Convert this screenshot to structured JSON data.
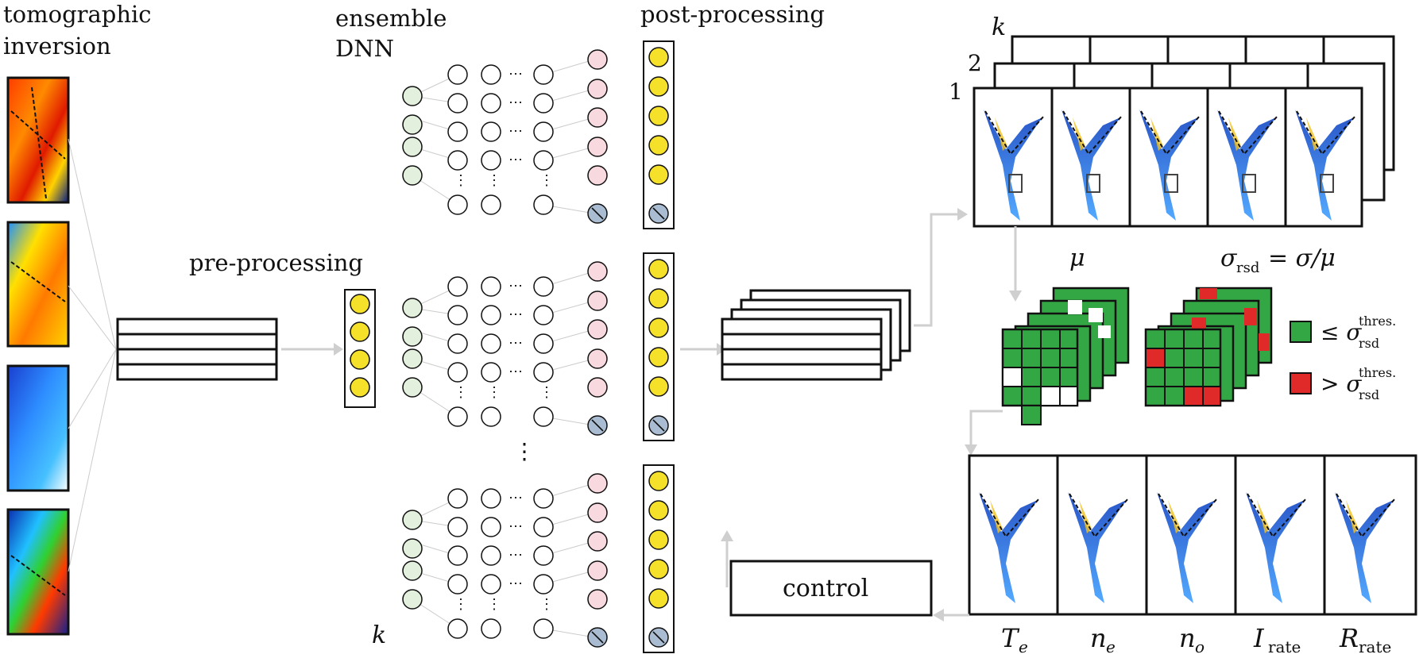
{
  "labels": {
    "tomographic": "tomographic",
    "inversion": "inversion",
    "ensemble": "ensemble",
    "dnn": "DNN",
    "preprocessing": "pre-processing",
    "postprocessing": "post-processing",
    "control": "control",
    "k_bottom": "k",
    "stack_k": "k",
    "stack_2": "2",
    "stack_1": "1",
    "mu": "μ",
    "sigma_eq": "σ",
    "sigma_sub": "rsd",
    "sigma_rhs": "= σ/μ",
    "legend_le": "≤ σ",
    "legend_gt": "> σ",
    "legend_sup": "thres.",
    "legend_sub": "rsd",
    "dots_v": "⋮",
    "dots_h": "⋯"
  },
  "outputs": [
    {
      "main": "T",
      "sub": "e"
    },
    {
      "main": "n",
      "sub": "e"
    },
    {
      "main": "n",
      "sub": "o"
    },
    {
      "main": "I",
      "sub": "rate"
    },
    {
      "main": "R",
      "sub": "rate"
    }
  ],
  "colors": {
    "input_node": "#e3f0dd",
    "output_node": "#f9d9e0",
    "output_null": "#a9bcd2",
    "yellow": "#f5e12a",
    "green": "#34a745",
    "red": "#e02a2a",
    "arrow": "#cfcfcf"
  },
  "icons": [
    "jet-colormap-image",
    "tokamak-x-point-map",
    "null-node-icon"
  ]
}
